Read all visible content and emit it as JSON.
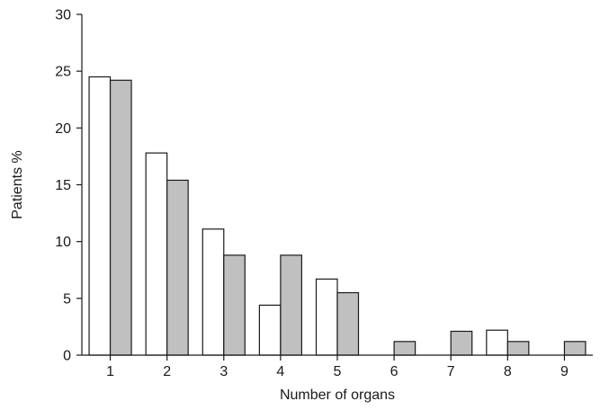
{
  "chart_data": {
    "type": "bar",
    "title": "",
    "xlabel": "Number of organs",
    "ylabel": "Patients %",
    "categories": [
      "1",
      "2",
      "3",
      "4",
      "5",
      "6",
      "7",
      "8",
      "9"
    ],
    "ylim": [
      0,
      30
    ],
    "yticks": [
      "0",
      "5",
      "10",
      "15",
      "20",
      "25",
      "30"
    ],
    "grid": false,
    "legend": "none",
    "series": [
      {
        "values": [
          24.5,
          17.8,
          11.1,
          4.4,
          6.7,
          0,
          0,
          2.2,
          0
        ],
        "color": "#ffffff"
      },
      {
        "values": [
          24.2,
          15.4,
          8.8,
          8.8,
          5.5,
          1.2,
          2.1,
          1.2,
          1.2
        ],
        "color": "#c0c0c0"
      }
    ]
  }
}
